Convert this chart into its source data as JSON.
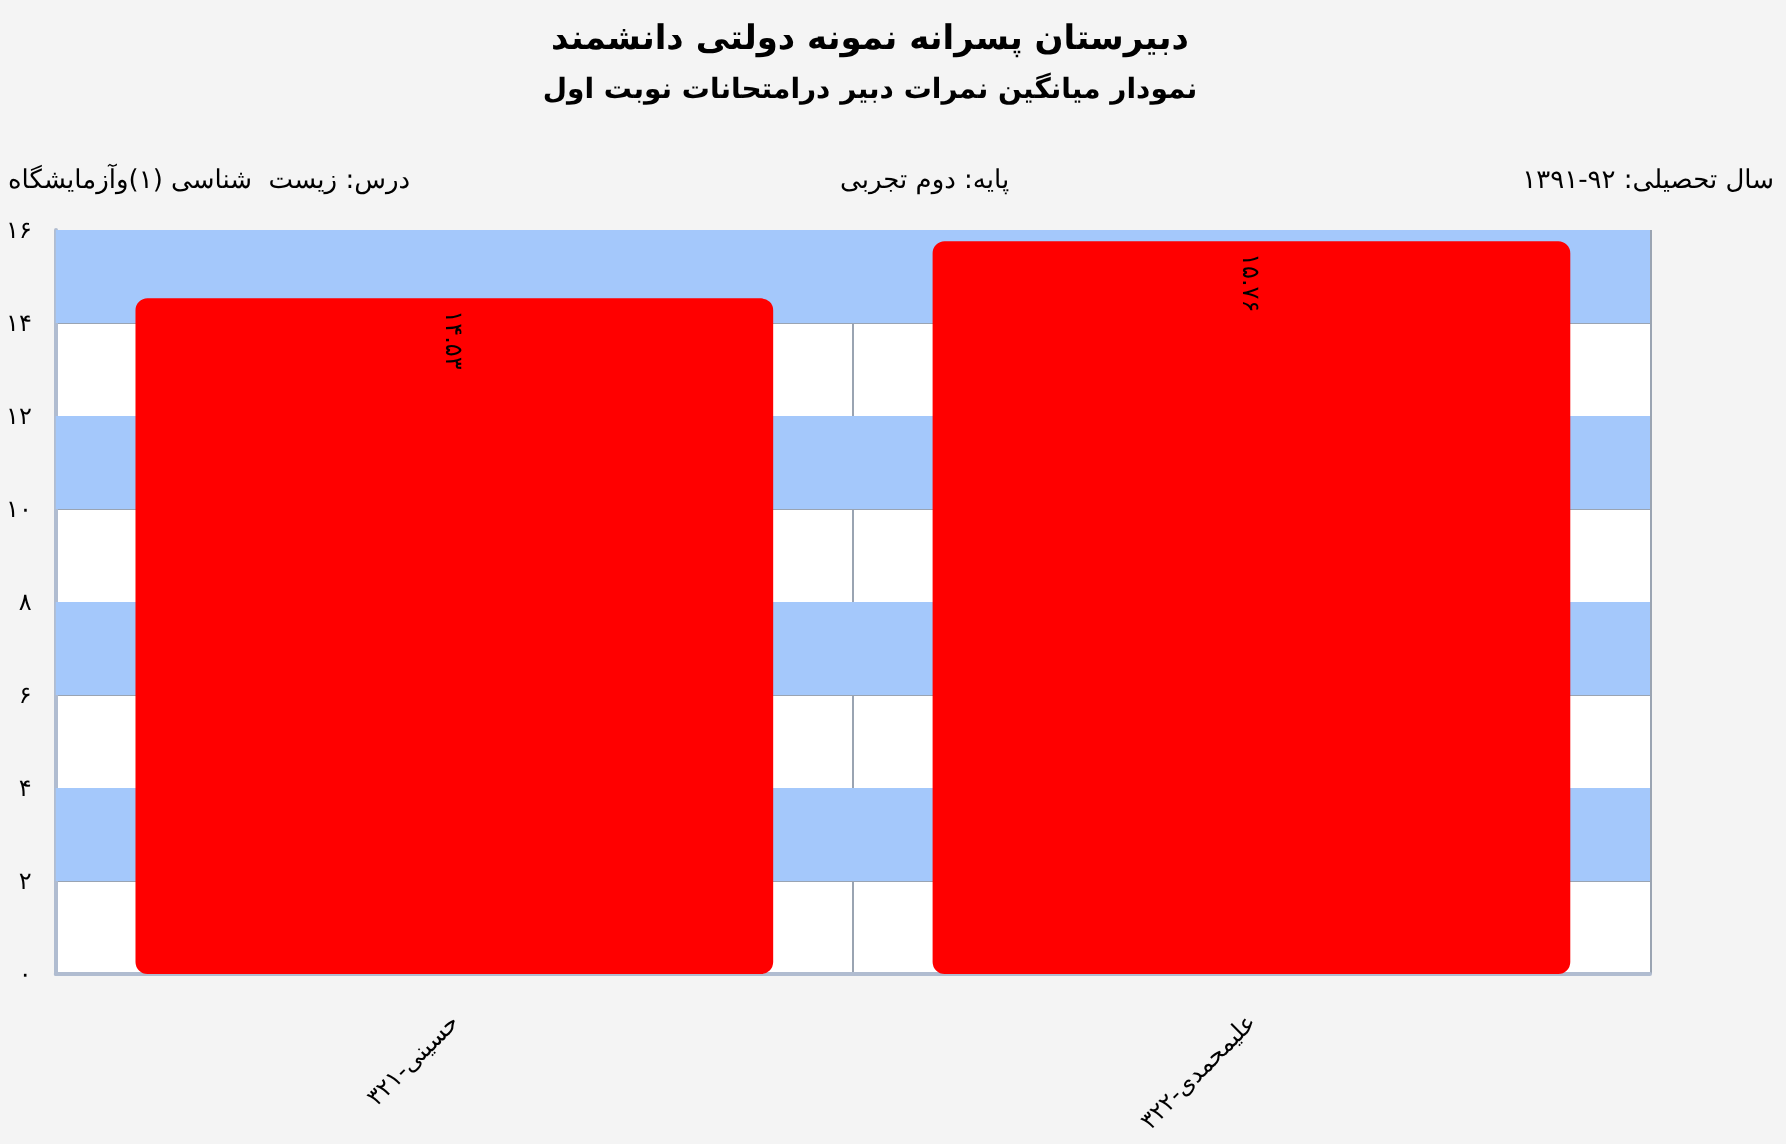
{
  "chart_data": {
    "type": "bar",
    "title": "دبیرستان پسرانه نمونه دولتی دانشمند",
    "subtitle": "نمودار میانگین نمرات دبیر درامتحانات نوبت اول",
    "annotations": [
      "سال تحصیلی: ۹۲-۱۳۹۱",
      "پایه: دوم تجربی",
      "درس: زیست  شناسی (۱)وآزمایشگاه"
    ],
    "categories": [
      "حسینی-۳۲۱",
      "علیمحمدی-۳۲۲"
    ],
    "values": [
      14.53,
      15.76
    ],
    "value_labels": [
      "۱۴.۵۳",
      "۱۵.۷۶"
    ],
    "color": "#ff0000",
    "ylim": [
      0,
      16
    ],
    "yticks": [
      {
        "value": 0,
        "label": "۰"
      },
      {
        "value": 2,
        "label": "۲"
      },
      {
        "value": 4,
        "label": "۴"
      },
      {
        "value": 6,
        "label": "۶"
      },
      {
        "value": 8,
        "label": "۸"
      },
      {
        "value": 10,
        "label": "۱۰"
      },
      {
        "value": 12,
        "label": "۱۲"
      },
      {
        "value": 14,
        "label": "۱۴"
      },
      {
        "value": 16,
        "label": "۱۶"
      }
    ],
    "bands": [
      {
        "axis": "y",
        "from": 2,
        "to": 4,
        "color": "#a4c8fb"
      },
      {
        "axis": "y",
        "from": 6,
        "to": 8,
        "color": "#a4c8fb"
      },
      {
        "axis": "y",
        "from": 10,
        "to": 12,
        "color": "#a4c8fb"
      },
      {
        "axis": "y",
        "from": 14,
        "to": 16,
        "color": "#a4c8fb"
      }
    ],
    "grid": true
  }
}
